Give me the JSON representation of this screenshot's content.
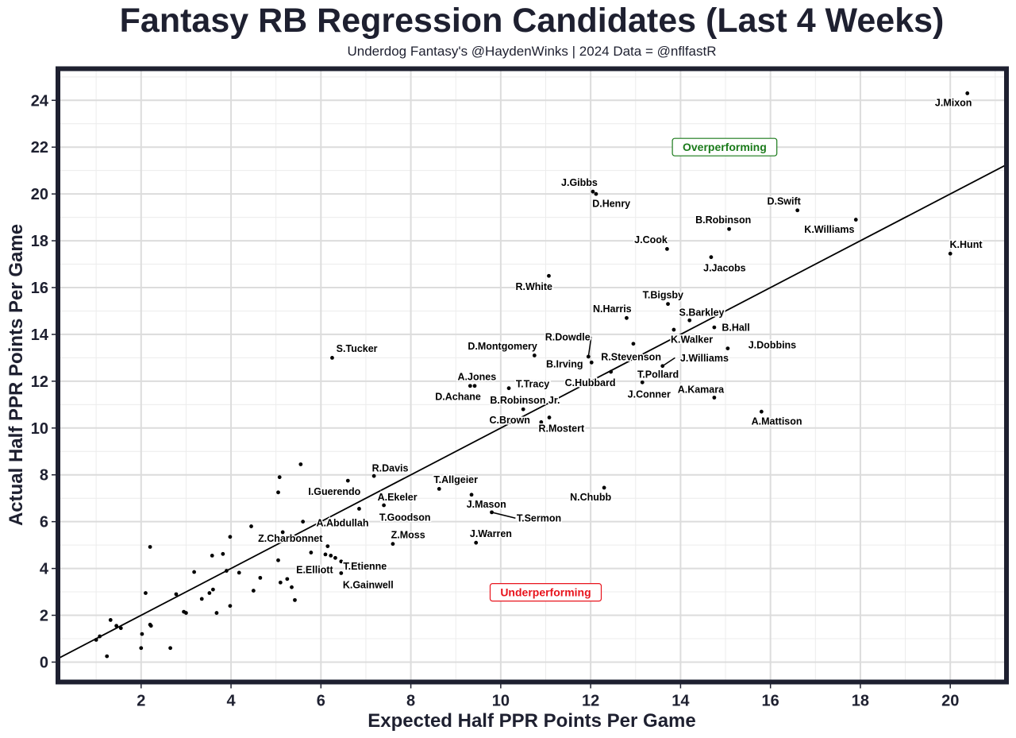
{
  "chart_data": {
    "type": "scatter",
    "title": "Fantasy RB Regression Candidates (Last 4 Weeks)",
    "subtitle": "Underdog Fantasy's @HaydenWinks | 2024 Data = @nflfastR",
    "xlabel": "Expected Half PPR Points Per Game",
    "ylabel": "Actual Half PPR Points Per Game",
    "xlim": [
      0.15,
      21.25
    ],
    "ylim": [
      -0.85,
      25.35
    ],
    "x_ticks": [
      2,
      4,
      6,
      8,
      10,
      12,
      14,
      16,
      18,
      20
    ],
    "y_ticks": [
      0,
      2,
      4,
      6,
      8,
      10,
      12,
      14,
      16,
      18,
      20,
      22,
      24
    ],
    "x_tick_labels": [
      "2",
      "4",
      "6",
      "8",
      "10",
      "12",
      "14",
      "16",
      "18",
      "20"
    ],
    "y_tick_labels": [
      "0",
      "2",
      "4",
      "6",
      "8",
      "10",
      "12",
      "14",
      "16",
      "18",
      "20",
      "22",
      "24"
    ],
    "reference_line": {
      "slope": 1,
      "intercept": 0
    },
    "annotations": [
      {
        "text": "Overperforming",
        "x": 14.98,
        "y": 22.0,
        "color": "#1a7a1a"
      },
      {
        "text": "Underperforming",
        "x": 11.0,
        "y": 2.98,
        "color": "#e8141d"
      }
    ],
    "points": [
      {
        "name": "J.Mixon",
        "x": 20.38,
        "y": 24.3,
        "label_x": 20.07,
        "label_y": 23.9
      },
      {
        "name": "J.Gibbs",
        "x": 12.05,
        "y": 20.1,
        "label_x": 11.75,
        "label_y": 20.5
      },
      {
        "name": "D.Henry",
        "x": 12.12,
        "y": 20.0,
        "label_x": 12.46,
        "label_y": 19.6
      },
      {
        "name": "D.Swift",
        "x": 16.6,
        "y": 19.3,
        "label_x": 16.3,
        "label_y": 19.7
      },
      {
        "name": "K.Williams",
        "x": 17.9,
        "y": 18.9,
        "label_x": 17.31,
        "label_y": 18.5
      },
      {
        "name": "B.Robinson",
        "x": 15.08,
        "y": 18.5,
        "label_x": 14.95,
        "label_y": 18.9
      },
      {
        "name": "K.Hunt",
        "x": 20.0,
        "y": 17.45,
        "label_x": 20.35,
        "label_y": 17.85
      },
      {
        "name": "J.Cook",
        "x": 13.7,
        "y": 17.65,
        "label_x": 13.34,
        "label_y": 18.05
      },
      {
        "name": "J.Jacobs",
        "x": 14.68,
        "y": 17.3,
        "label_x": 14.98,
        "label_y": 16.85
      },
      {
        "name": "R.White",
        "x": 11.07,
        "y": 16.5,
        "label_x": 10.74,
        "label_y": 16.05
      },
      {
        "name": "T.Bigsby",
        "x": 13.72,
        "y": 15.3,
        "label_x": 13.61,
        "label_y": 15.7
      },
      {
        "name": "N.Harris",
        "x": 12.8,
        "y": 14.7,
        "label_x": 12.48,
        "label_y": 15.1
      },
      {
        "name": "S.Barkley",
        "x": 14.2,
        "y": 14.6,
        "label_x": 14.47,
        "label_y": 14.95
      },
      {
        "name": "B.Hall",
        "x": 14.75,
        "y": 14.3,
        "label_x": 15.23,
        "label_y": 14.3
      },
      {
        "name": "K.Walker",
        "x": 13.85,
        "y": 14.2,
        "label_x": 14.25,
        "label_y": 13.8
      },
      {
        "name": "R.Dowdle",
        "x": 11.95,
        "y": 13.05,
        "label_x": 11.49,
        "label_y": 13.9,
        "leader": true
      },
      {
        "name": "J.Dobbins",
        "x": 15.05,
        "y": 13.4,
        "label_x": 16.04,
        "label_y": 13.55
      },
      {
        "name": "D.Montgomery",
        "x": 10.75,
        "y": 13.1,
        "label_x": 10.04,
        "label_y": 13.5
      },
      {
        "name": "S.Tucker",
        "x": 6.25,
        "y": 13.0,
        "label_x": 6.8,
        "label_y": 13.4
      },
      {
        "name": "R.Stevenson",
        "x": 12.95,
        "y": 13.6,
        "label_x": 12.9,
        "label_y": 13.05
      },
      {
        "name": "J.Williams",
        "x": 13.6,
        "y": 12.65,
        "label_x": 14.53,
        "label_y": 13.0,
        "leader": true
      },
      {
        "name": "B.Irving",
        "x": 12.02,
        "y": 12.8,
        "label_x": 11.42,
        "label_y": 12.75
      },
      {
        "name": "T.Pollard",
        "x": 13.1,
        "y": 12.35,
        "label_x": 13.5,
        "label_y": 12.3
      },
      {
        "name": "C.Hubbard",
        "x": 12.45,
        "y": 12.4,
        "label_x": 11.99,
        "label_y": 11.95
      },
      {
        "name": "J.Conner",
        "x": 13.15,
        "y": 11.95,
        "label_x": 13.3,
        "label_y": 11.45
      },
      {
        "name": "A.Jones",
        "x": 9.42,
        "y": 11.8,
        "label_x": 9.47,
        "label_y": 12.2
      },
      {
        "name": "T.Tracy",
        "x": 10.18,
        "y": 11.7,
        "label_x": 10.71,
        "label_y": 11.9
      },
      {
        "name": "A.Kamara",
        "x": 14.75,
        "y": 11.3,
        "label_x": 14.45,
        "label_y": 11.65
      },
      {
        "name": "D.Achane",
        "x": 9.32,
        "y": 11.8,
        "label_x": 9.05,
        "label_y": 11.35
      },
      {
        "name": "B.Robinson Jr.",
        "x": 10.5,
        "y": 10.8,
        "label_x": 10.54,
        "label_y": 11.2
      },
      {
        "name": "A.Mattison",
        "x": 15.8,
        "y": 10.7,
        "label_x": 16.14,
        "label_y": 10.3
      },
      {
        "name": "C.Brown",
        "x": 11.08,
        "y": 10.45,
        "label_x": 10.2,
        "label_y": 10.35
      },
      {
        "name": "R.Mostert",
        "x": 10.9,
        "y": 10.25,
        "label_x": 11.35,
        "label_y": 10.0
      },
      {
        "name": "R.Davis",
        "x": 7.18,
        "y": 7.95,
        "label_x": 7.54,
        "label_y": 8.3
      },
      {
        "name": "T.Allgeier",
        "x": 8.63,
        "y": 7.4,
        "label_x": 9.0,
        "label_y": 7.8
      },
      {
        "name": "I.Guerendo",
        "x": 6.6,
        "y": 7.75,
        "label_x": 6.3,
        "label_y": 7.3
      },
      {
        "name": "N.Chubb",
        "x": 12.3,
        "y": 7.45,
        "label_x": 12.0,
        "label_y": 7.05
      },
      {
        "name": "A.Ekeler",
        "x": 7.4,
        "y": 6.7,
        "label_x": 7.7,
        "label_y": 7.05
      },
      {
        "name": "J.Mason",
        "x": 9.35,
        "y": 7.15,
        "label_x": 9.68,
        "label_y": 6.75
      },
      {
        "name": "T.Sermon",
        "x": 9.8,
        "y": 6.4,
        "label_x": 10.85,
        "label_y": 6.15,
        "leader": true
      },
      {
        "name": "T.Goodson",
        "x": 6.85,
        "y": 6.55,
        "label_x": 7.87,
        "label_y": 6.2
      },
      {
        "name": "A.Abdullah",
        "x": 5.6,
        "y": 6.0,
        "label_x": 6.48,
        "label_y": 5.95
      },
      {
        "name": "Z.Moss",
        "x": 7.6,
        "y": 5.05,
        "label_x": 7.94,
        "label_y": 5.45
      },
      {
        "name": "J.Warren",
        "x": 9.45,
        "y": 5.1,
        "label_x": 9.78,
        "label_y": 5.5
      },
      {
        "name": "Z.Charbonnet",
        "x": 5.15,
        "y": 5.55,
        "label_x": 5.32,
        "label_y": 5.3
      },
      {
        "name": "T.Etienne",
        "x": 6.45,
        "y": 4.3,
        "label_x": 6.98,
        "label_y": 4.1
      },
      {
        "name": "E.Elliott",
        "x": 6.1,
        "y": 4.6,
        "label_x": 5.86,
        "label_y": 3.95
      },
      {
        "name": "K.Gainwell",
        "x": 6.45,
        "y": 3.8,
        "label_x": 7.05,
        "label_y": 3.3
      }
    ],
    "unlabeled_points": [
      [
        5.55,
        8.45
      ],
      [
        5.08,
        7.9
      ],
      [
        5.05,
        7.25
      ],
      [
        4.45,
        5.8
      ],
      [
        3.98,
        5.35
      ],
      [
        2.2,
        4.92
      ],
      [
        3.58,
        4.55
      ],
      [
        3.82,
        4.62
      ],
      [
        3.9,
        3.9
      ],
      [
        4.18,
        3.82
      ],
      [
        3.18,
        3.85
      ],
      [
        5.05,
        4.35
      ],
      [
        5.78,
        4.68
      ],
      [
        6.15,
        4.95
      ],
      [
        6.22,
        4.55
      ],
      [
        6.32,
        4.45
      ],
      [
        4.65,
        3.6
      ],
      [
        5.25,
        3.55
      ],
      [
        5.1,
        3.4
      ],
      [
        5.35,
        3.2
      ],
      [
        4.5,
        3.05
      ],
      [
        3.6,
        3.1
      ],
      [
        3.52,
        2.95
      ],
      [
        3.35,
        2.7
      ],
      [
        3.98,
        2.4
      ],
      [
        5.42,
        2.65
      ],
      [
        2.78,
        2.9
      ],
      [
        2.1,
        2.95
      ],
      [
        2.95,
        2.15
      ],
      [
        3.0,
        2.1
      ],
      [
        3.68,
        2.1
      ],
      [
        2.2,
        1.6
      ],
      [
        2.22,
        1.55
      ],
      [
        1.32,
        1.8
      ],
      [
        1.45,
        1.55
      ],
      [
        1.55,
        1.45
      ],
      [
        1.08,
        1.1
      ],
      [
        1.0,
        0.95
      ],
      [
        2.02,
        1.2
      ],
      [
        2.0,
        0.6
      ],
      [
        2.65,
        0.6
      ],
      [
        1.24,
        0.25
      ]
    ]
  }
}
